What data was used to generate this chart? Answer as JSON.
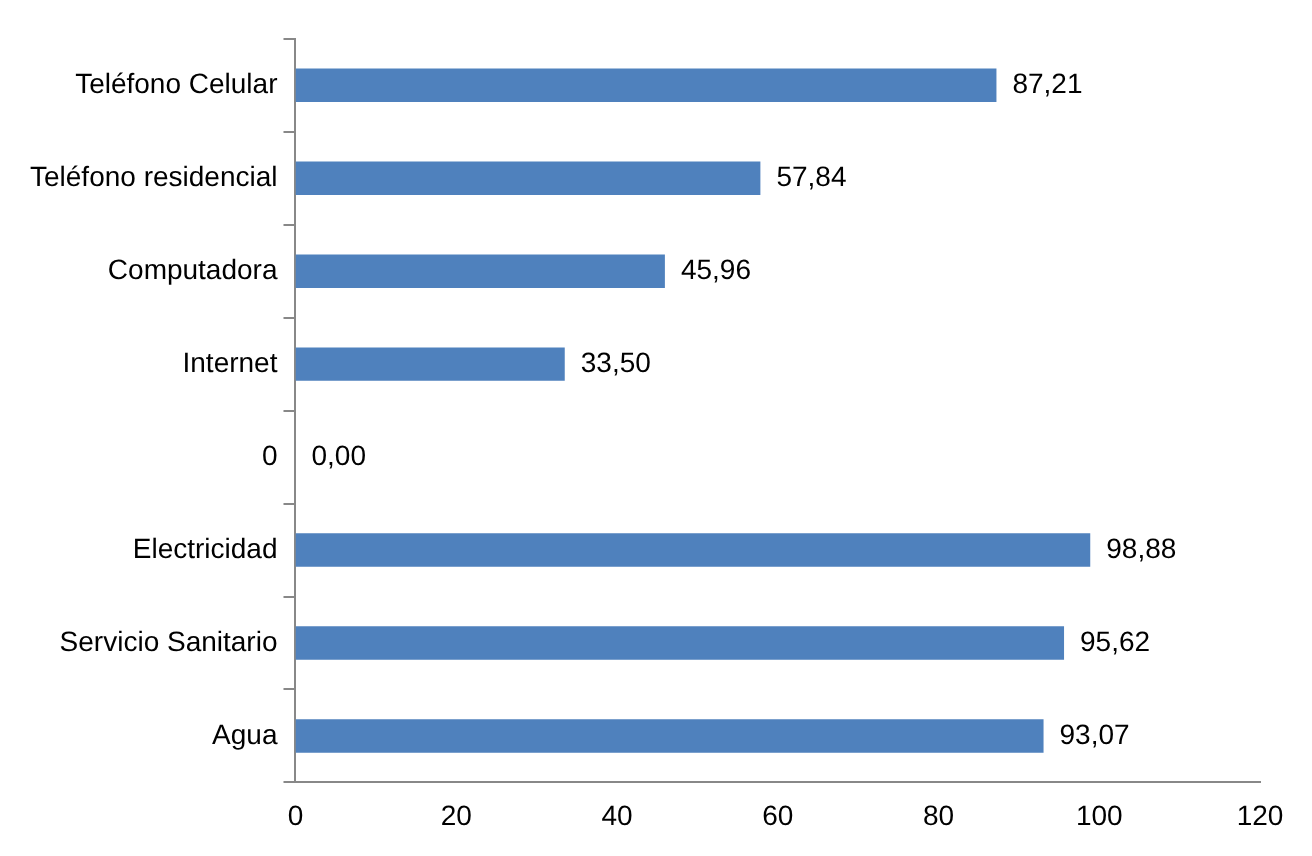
{
  "chart_data": {
    "type": "bar",
    "orientation": "horizontal",
    "categories": [
      "Teléfono Celular",
      "Teléfono residencial",
      "Computadora",
      "Internet",
      "0",
      "Electricidad",
      "Servicio Sanitario",
      "Agua"
    ],
    "values": [
      87.21,
      57.84,
      45.96,
      33.5,
      0,
      98.88,
      95.62,
      93.07
    ],
    "value_labels": [
      "87,21",
      "57,84",
      "45,96",
      "33,50",
      "0,00",
      "98,88",
      "95,62",
      "93,07"
    ],
    "color": "#4f81bd",
    "xlim": [
      0,
      120
    ],
    "xticks": [
      0,
      20,
      40,
      60,
      80,
      100,
      120
    ],
    "grid": false,
    "legend": false
  }
}
